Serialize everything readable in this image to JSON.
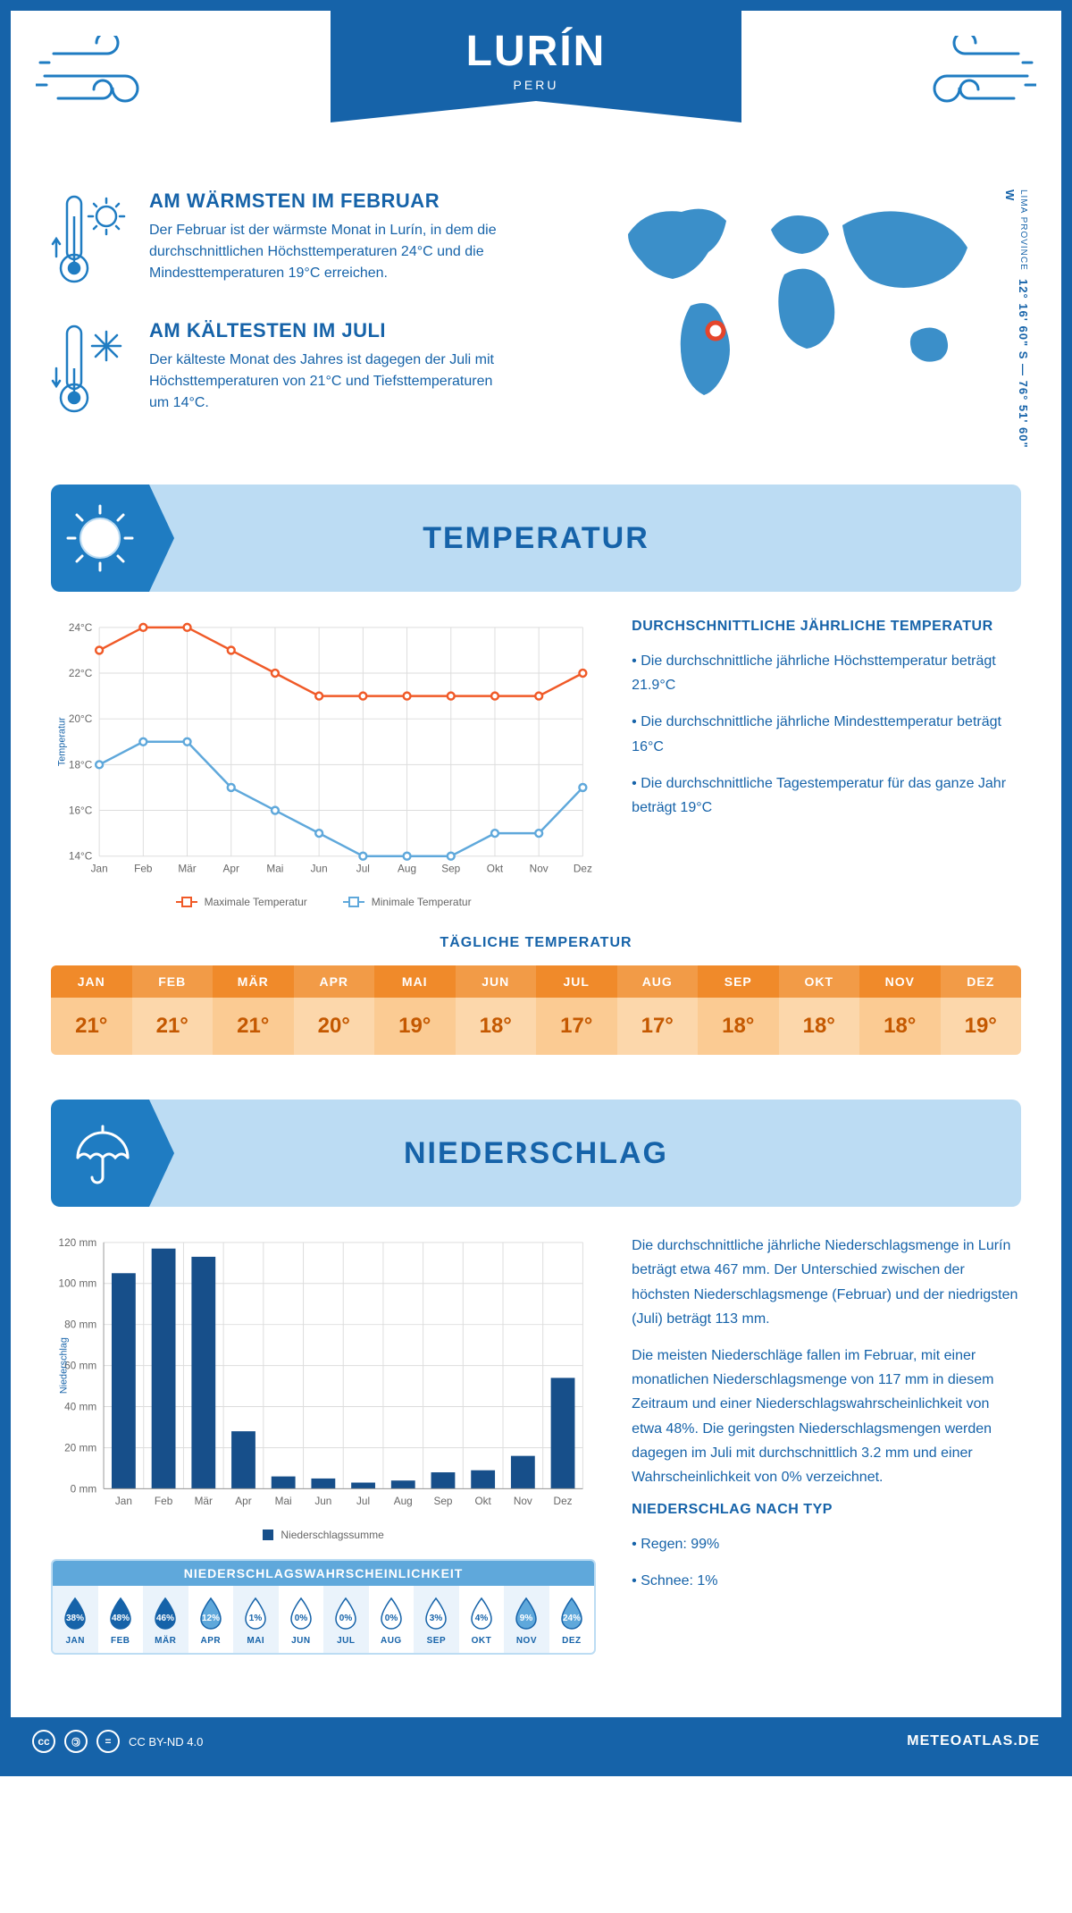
{
  "colors": {
    "primary": "#1663a9",
    "lightBlue": "#bcdcf3",
    "midBlue": "#5fa8db",
    "accentBlue": "#1f7cc2",
    "orange": "#f08a2a",
    "orangeLight": "#fbcb93",
    "lineMax": "#f05a28",
    "lineMin": "#5fa8db",
    "barFill": "#174f8a"
  },
  "header": {
    "city": "LURÍN",
    "country": "PERU"
  },
  "coords": {
    "text": "12° 16' 60\" S — 76° 51' 60\" W",
    "province": "LIMA PROVINCE"
  },
  "facts": {
    "warm": {
      "title": "AM WÄRMSTEN IM FEBRUAR",
      "body": "Der Februar ist der wärmste Monat in Lurín, in dem die durchschnittlichen Höchsttemperaturen 24°C und die Mindesttemperaturen 19°C erreichen."
    },
    "cold": {
      "title": "AM KÄLTESTEN IM JULI",
      "body": "Der kälteste Monat des Jahres ist dagegen der Juli mit Höchsttemperaturen von 21°C und Tiefsttemperaturen um 14°C."
    }
  },
  "map": {
    "markerX": 138,
    "markerY": 158
  },
  "sections": {
    "temperature": "TEMPERATUR",
    "precipitation": "NIEDERSCHLAG"
  },
  "tempChart": {
    "type": "line",
    "yAxisLabel": "Temperatur",
    "months": [
      "Jan",
      "Feb",
      "Mär",
      "Apr",
      "Mai",
      "Jun",
      "Jul",
      "Aug",
      "Sep",
      "Okt",
      "Nov",
      "Dez"
    ],
    "ylim": [
      14,
      24
    ],
    "ytick_step": 2,
    "ytick_suffix": "°C",
    "series": {
      "max": {
        "label": "Maximale Temperatur",
        "color": "#f05a28",
        "values": [
          23,
          24,
          24,
          23,
          22,
          21,
          21,
          21,
          21,
          21,
          21,
          22
        ]
      },
      "min": {
        "label": "Minimale Temperatur",
        "color": "#5fa8db",
        "values": [
          18,
          19,
          19,
          17,
          16,
          15,
          14,
          14,
          14,
          15,
          15,
          17
        ]
      }
    }
  },
  "tempText": {
    "heading": "DURCHSCHNITTLICHE JÄHRLICHE TEMPERATUR",
    "bullets": [
      "Die durchschnittliche jährliche Höchsttemperatur beträgt 21.9°C",
      "Die durchschnittliche jährliche Mindesttemperatur beträgt 16°C",
      "Die durchschnittliche Tagestemperatur für das ganze Jahr beträgt 19°C"
    ]
  },
  "dailyTemp": {
    "title": "TÄGLICHE TEMPERATUR",
    "months": [
      "JAN",
      "FEB",
      "MÄR",
      "APR",
      "MAI",
      "JUN",
      "JUL",
      "AUG",
      "SEP",
      "OKT",
      "NOV",
      "DEZ"
    ],
    "values": [
      "21°",
      "21°",
      "21°",
      "20°",
      "19°",
      "18°",
      "17°",
      "17°",
      "18°",
      "18°",
      "18°",
      "19°"
    ]
  },
  "precipChart": {
    "type": "bar",
    "yAxisLabel": "Niederschlag",
    "legendLabel": "Niederschlagssumme",
    "months": [
      "Jan",
      "Feb",
      "Mär",
      "Apr",
      "Mai",
      "Jun",
      "Jul",
      "Aug",
      "Sep",
      "Okt",
      "Nov",
      "Dez"
    ],
    "ylim": [
      0,
      120
    ],
    "ytick_step": 20,
    "ytick_suffix": " mm",
    "bar_color": "#174f8a",
    "values": [
      105,
      117,
      113,
      28,
      6,
      5,
      3,
      4,
      8,
      9,
      16,
      54
    ]
  },
  "precipText": {
    "p1": "Die durchschnittliche jährliche Niederschlagsmenge in Lurín beträgt etwa 467 mm. Der Unterschied zwischen der höchsten Niederschlagsmenge (Februar) und der niedrigsten (Juli) beträgt 113 mm.",
    "p2": "Die meisten Niederschläge fallen im Februar, mit einer monatlichen Niederschlagsmenge von 117 mm in diesem Zeitraum und einer Niederschlagswahrscheinlichkeit von etwa 48%. Die geringsten Niederschlagsmengen werden dagegen im Juli mit durchschnittlich 3.2 mm und einer Wahrscheinlichkeit von 0% verzeichnet.",
    "typeHeading": "NIEDERSCHLAG NACH TYP",
    "types": [
      "Regen: 99%",
      "Schnee: 1%"
    ]
  },
  "precipProb": {
    "title": "NIEDERSCHLAGSWAHRSCHEINLICHKEIT",
    "months": [
      "JAN",
      "FEB",
      "MÄR",
      "APR",
      "MAI",
      "JUN",
      "JUL",
      "AUG",
      "SEP",
      "OKT",
      "NOV",
      "DEZ"
    ],
    "values": [
      38,
      48,
      46,
      12,
      1,
      0,
      0,
      0,
      3,
      4,
      9,
      24
    ],
    "dropFull": "#1663a9",
    "dropMid": "#5fa8db",
    "dropEmpty": "#ffffff",
    "dropStroke": "#1663a9"
  },
  "footer": {
    "license": "CC BY-ND 4.0",
    "site": "METEOATLAS.DE"
  }
}
